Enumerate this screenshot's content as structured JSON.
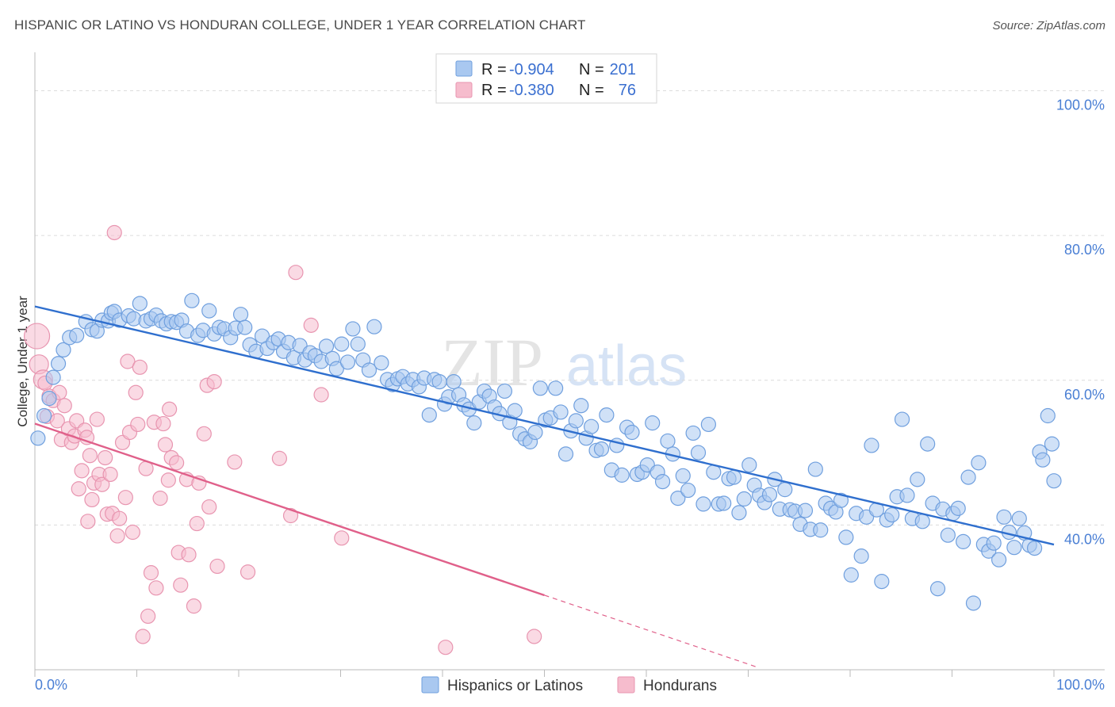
{
  "title": "HISPANIC OR LATINO VS HONDURAN COLLEGE, UNDER 1 YEAR CORRELATION CHART",
  "source": "Source: ZipAtlas.com",
  "watermark": {
    "zip": "ZIP",
    "atlas": "atlas"
  },
  "colors": {
    "blue_fill": "#a9c8f0",
    "blue_stroke": "#6f9fde",
    "blue_line": "#2f6fce",
    "pink_fill": "#f6bccd",
    "pink_stroke": "#e895b0",
    "pink_line": "#e0608a",
    "axis_text": "#4a7fd4",
    "grid": "#dcdcdc"
  },
  "legend": {
    "rows": [
      {
        "r_label": "R =",
        "r_value": "-0.904",
        "n_label": "N =",
        "n_value": "201"
      },
      {
        "r_label": "R =",
        "r_value": "-0.380",
        "n_label": "N =",
        "n_value": "76"
      }
    ]
  },
  "bottom_legend": [
    "Hispanics or Latinos",
    "Hondurans"
  ],
  "chart_data": {
    "type": "scatter",
    "title": "HISPANIC OR LATINO VS HONDURAN COLLEGE, UNDER 1 YEAR CORRELATION CHART",
    "xlabel": "",
    "ylabel": "College, Under 1 year",
    "xlim": [
      0,
      100
    ],
    "ylim": [
      20,
      104
    ],
    "x_tick_labels": [
      "0.0%",
      "100.0%"
    ],
    "y_ticks": [
      40,
      60,
      80,
      100
    ],
    "y_tick_labels": [
      "40.0%",
      "60.0%",
      "80.0%",
      "100.0%"
    ],
    "grid": true,
    "series": [
      {
        "name": "Hispanics or Latinos",
        "r": -0.904,
        "n": 201,
        "trend": {
          "x": [
            0,
            100
          ],
          "y": [
            70.2,
            37.3
          ]
        },
        "points": [
          [
            0.3,
            52
          ],
          [
            0.9,
            55.1
          ],
          [
            1.4,
            57.5
          ],
          [
            1.8,
            60.4
          ],
          [
            2.3,
            62.3
          ],
          [
            2.8,
            64.2
          ],
          [
            3.4,
            65.9
          ],
          [
            4.1,
            66.2
          ],
          [
            5.0,
            68.1
          ],
          [
            5.6,
            67
          ],
          [
            6.1,
            66.8
          ],
          [
            6.6,
            68.3
          ],
          [
            7.2,
            68.2
          ],
          [
            7.5,
            69.3
          ],
          [
            7.8,
            69.5
          ],
          [
            8.3,
            68.3
          ],
          [
            9.2,
            68.9
          ],
          [
            9.7,
            68.5
          ],
          [
            10.3,
            70.6
          ],
          [
            10.9,
            68.2
          ],
          [
            11.4,
            68.5
          ],
          [
            11.9,
            69
          ],
          [
            12.4,
            68.2
          ],
          [
            12.9,
            67.8
          ],
          [
            13.4,
            68.1
          ],
          [
            13.9,
            68
          ],
          [
            14.4,
            68.3
          ],
          [
            14.9,
            66.8
          ],
          [
            15.4,
            71
          ],
          [
            16.0,
            66.2
          ],
          [
            16.5,
            66.9
          ],
          [
            17.1,
            69.6
          ],
          [
            17.6,
            66.4
          ],
          [
            18.1,
            67.3
          ],
          [
            18.6,
            67.1
          ],
          [
            19.2,
            65.9
          ],
          [
            19.7,
            67.2
          ],
          [
            20.2,
            69.1
          ],
          [
            20.6,
            67.3
          ],
          [
            21.1,
            64.9
          ],
          [
            21.7,
            64
          ],
          [
            22.3,
            66.1
          ],
          [
            22.8,
            64.4
          ],
          [
            23.4,
            65.2
          ],
          [
            23.9,
            65.7
          ],
          [
            24.4,
            64
          ],
          [
            24.9,
            65.2
          ],
          [
            25.4,
            63.1
          ],
          [
            26.0,
            64.8
          ],
          [
            26.5,
            62.8
          ],
          [
            27.0,
            63.8
          ],
          [
            27.5,
            63.4
          ],
          [
            28.1,
            62.6
          ],
          [
            28.6,
            64.7
          ],
          [
            29.2,
            63
          ],
          [
            29.6,
            61.6
          ],
          [
            30.1,
            65
          ],
          [
            30.7,
            62.5
          ],
          [
            31.2,
            67.1
          ],
          [
            31.7,
            65
          ],
          [
            32.2,
            62.8
          ],
          [
            32.8,
            61.4
          ],
          [
            33.3,
            67.4
          ],
          [
            34.0,
            62.4
          ],
          [
            34.6,
            60.1
          ],
          [
            35.1,
            59.4
          ],
          [
            35.6,
            60.2
          ],
          [
            36.1,
            60.5
          ],
          [
            36.6,
            59.5
          ],
          [
            37.1,
            60.1
          ],
          [
            37.7,
            59.1
          ],
          [
            38.2,
            60.3
          ],
          [
            38.7,
            55.2
          ],
          [
            39.2,
            60.1
          ],
          [
            39.7,
            59.8
          ],
          [
            40.2,
            56.7
          ],
          [
            40.6,
            57.7
          ],
          [
            41.1,
            59.8
          ],
          [
            41.6,
            58
          ],
          [
            42.1,
            56.6
          ],
          [
            42.6,
            56
          ],
          [
            43.1,
            54.1
          ],
          [
            43.6,
            57
          ],
          [
            44.1,
            58.5
          ],
          [
            44.6,
            57.8
          ],
          [
            45.1,
            56.3
          ],
          [
            45.6,
            55.4
          ],
          [
            46.1,
            58.5
          ],
          [
            46.6,
            54.2
          ],
          [
            47.1,
            55.8
          ],
          [
            47.6,
            52.6
          ],
          [
            48.1,
            51.9
          ],
          [
            48.6,
            51.5
          ],
          [
            49.1,
            52.8
          ],
          [
            49.6,
            58.9
          ],
          [
            50.1,
            54.5
          ],
          [
            50.6,
            54.8
          ],
          [
            51.1,
            58.9
          ],
          [
            51.6,
            55.6
          ],
          [
            52.1,
            49.8
          ],
          [
            52.6,
            53
          ],
          [
            53.1,
            54.4
          ],
          [
            53.6,
            56.5
          ],
          [
            54.1,
            52
          ],
          [
            54.6,
            53.6
          ],
          [
            55.1,
            50.3
          ],
          [
            55.6,
            50.5
          ],
          [
            56.1,
            55.2
          ],
          [
            56.6,
            47.6
          ],
          [
            57.1,
            51
          ],
          [
            57.6,
            46.9
          ],
          [
            58.1,
            53.5
          ],
          [
            58.6,
            52.8
          ],
          [
            59.1,
            47
          ],
          [
            59.6,
            47.3
          ],
          [
            60.1,
            48.3
          ],
          [
            60.6,
            54.1
          ],
          [
            61.1,
            47.3
          ],
          [
            61.6,
            46
          ],
          [
            62.1,
            51.6
          ],
          [
            62.6,
            49.8
          ],
          [
            63.1,
            43.7
          ],
          [
            63.6,
            46.8
          ],
          [
            64.1,
            44.8
          ],
          [
            64.6,
            52.7
          ],
          [
            65.1,
            50
          ],
          [
            65.6,
            42.9
          ],
          [
            66.1,
            53.9
          ],
          [
            66.6,
            47.3
          ],
          [
            67.1,
            42.9
          ],
          [
            67.6,
            43
          ],
          [
            68.1,
            46.4
          ],
          [
            68.6,
            46.6
          ],
          [
            69.1,
            41.7
          ],
          [
            69.6,
            43.6
          ],
          [
            70.1,
            48.3
          ],
          [
            70.6,
            45.5
          ],
          [
            71.1,
            44.1
          ],
          [
            71.6,
            43.1
          ],
          [
            72.1,
            44.2
          ],
          [
            72.6,
            46.3
          ],
          [
            73.1,
            42.2
          ],
          [
            73.6,
            44.9
          ],
          [
            74.1,
            42.1
          ],
          [
            74.6,
            41.9
          ],
          [
            75.1,
            40.1
          ],
          [
            75.6,
            42
          ],
          [
            76.1,
            39.4
          ],
          [
            76.6,
            47.7
          ],
          [
            77.1,
            39.3
          ],
          [
            77.6,
            43
          ],
          [
            78.1,
            42.3
          ],
          [
            78.6,
            41.8
          ],
          [
            79.1,
            43.4
          ],
          [
            79.6,
            38.3
          ],
          [
            80.1,
            33.1
          ],
          [
            80.6,
            41.6
          ],
          [
            81.1,
            35.7
          ],
          [
            81.6,
            41.1
          ],
          [
            82.1,
            51
          ],
          [
            82.6,
            42.1
          ],
          [
            83.1,
            32.2
          ],
          [
            83.6,
            40.7
          ],
          [
            84.1,
            41.4
          ],
          [
            84.6,
            43.9
          ],
          [
            85.1,
            54.6
          ],
          [
            85.6,
            44.1
          ],
          [
            86.1,
            40.9
          ],
          [
            86.6,
            46.3
          ],
          [
            87.1,
            40.5
          ],
          [
            87.6,
            51.2
          ],
          [
            88.1,
            43
          ],
          [
            88.6,
            31.2
          ],
          [
            89.1,
            42.2
          ],
          [
            89.6,
            38.6
          ],
          [
            90.1,
            41.6
          ],
          [
            90.6,
            42.3
          ],
          [
            91.1,
            37.7
          ],
          [
            91.6,
            46.6
          ],
          [
            92.1,
            29.2
          ],
          [
            92.6,
            48.6
          ],
          [
            93.1,
            37.3
          ],
          [
            93.6,
            36.4
          ],
          [
            94.1,
            37.5
          ],
          [
            94.6,
            35.2
          ],
          [
            95.1,
            41.1
          ],
          [
            95.6,
            39
          ],
          [
            96.1,
            36.9
          ],
          [
            96.6,
            40.9
          ],
          [
            97.1,
            38.9
          ],
          [
            97.6,
            37.2
          ],
          [
            98.1,
            36.8
          ],
          [
            98.6,
            50.1
          ],
          [
            98.9,
            49
          ],
          [
            99.4,
            55.1
          ],
          [
            99.8,
            51.2
          ],
          [
            100.0,
            46.1
          ]
        ]
      },
      {
        "name": "Hondurans",
        "r": -0.38,
        "n": 76,
        "trend": {
          "x": [
            0,
            50
          ],
          "y": [
            54.0,
            30.3
          ],
          "dashed_to": {
            "x": 71,
            "y": 20.3
          }
        },
        "points": [
          [
            0.2,
            66.1
          ],
          [
            0.4,
            62.2
          ],
          [
            0.8,
            60.1
          ],
          [
            1.0,
            59.6
          ],
          [
            1.2,
            55
          ],
          [
            1.4,
            57.8
          ],
          [
            1.8,
            57.2
          ],
          [
            2.2,
            54.4
          ],
          [
            2.4,
            58.3
          ],
          [
            2.6,
            51.8
          ],
          [
            2.9,
            56.5
          ],
          [
            3.3,
            53.3
          ],
          [
            3.6,
            51.4
          ],
          [
            3.9,
            52.3
          ],
          [
            4.1,
            54.4
          ],
          [
            4.3,
            45
          ],
          [
            4.6,
            47.5
          ],
          [
            4.9,
            53.1
          ],
          [
            5.1,
            52.1
          ],
          [
            5.2,
            40.5
          ],
          [
            5.4,
            49.6
          ],
          [
            5.6,
            43.5
          ],
          [
            5.8,
            45.8
          ],
          [
            6.1,
            54.6
          ],
          [
            6.3,
            47
          ],
          [
            6.6,
            45.6
          ],
          [
            6.9,
            49.3
          ],
          [
            7.1,
            41.5
          ],
          [
            7.4,
            47
          ],
          [
            7.6,
            41.6
          ],
          [
            7.8,
            80.4
          ],
          [
            8.1,
            38.5
          ],
          [
            8.3,
            40.9
          ],
          [
            8.6,
            51.4
          ],
          [
            8.9,
            43.8
          ],
          [
            9.1,
            62.6
          ],
          [
            9.3,
            52.8
          ],
          [
            9.6,
            39
          ],
          [
            9.9,
            58.3
          ],
          [
            10.1,
            53.9
          ],
          [
            10.3,
            61.8
          ],
          [
            10.6,
            24.6
          ],
          [
            10.9,
            47.8
          ],
          [
            11.1,
            27.4
          ],
          [
            11.4,
            33.4
          ],
          [
            11.7,
            54.2
          ],
          [
            11.9,
            31.3
          ],
          [
            12.3,
            43.7
          ],
          [
            12.6,
            54
          ],
          [
            12.8,
            51.1
          ],
          [
            13.1,
            46.2
          ],
          [
            13.2,
            56
          ],
          [
            13.4,
            49.3
          ],
          [
            13.9,
            48.6
          ],
          [
            14.1,
            36.2
          ],
          [
            14.3,
            31.7
          ],
          [
            14.9,
            46.3
          ],
          [
            15.1,
            35.9
          ],
          [
            15.6,
            28.8
          ],
          [
            15.9,
            40.2
          ],
          [
            16.1,
            45.8
          ],
          [
            16.6,
            52.6
          ],
          [
            16.9,
            59.3
          ],
          [
            17.1,
            42.5
          ],
          [
            17.6,
            59.8
          ],
          [
            17.9,
            34.3
          ],
          [
            19.6,
            48.7
          ],
          [
            20.9,
            33.5
          ],
          [
            24.0,
            49.2
          ],
          [
            25.1,
            41.3
          ],
          [
            25.6,
            74.9
          ],
          [
            27.1,
            67.6
          ],
          [
            28.1,
            58
          ],
          [
            30.1,
            38.2
          ],
          [
            40.3,
            23.1
          ],
          [
            49.0,
            24.6
          ]
        ]
      }
    ]
  }
}
